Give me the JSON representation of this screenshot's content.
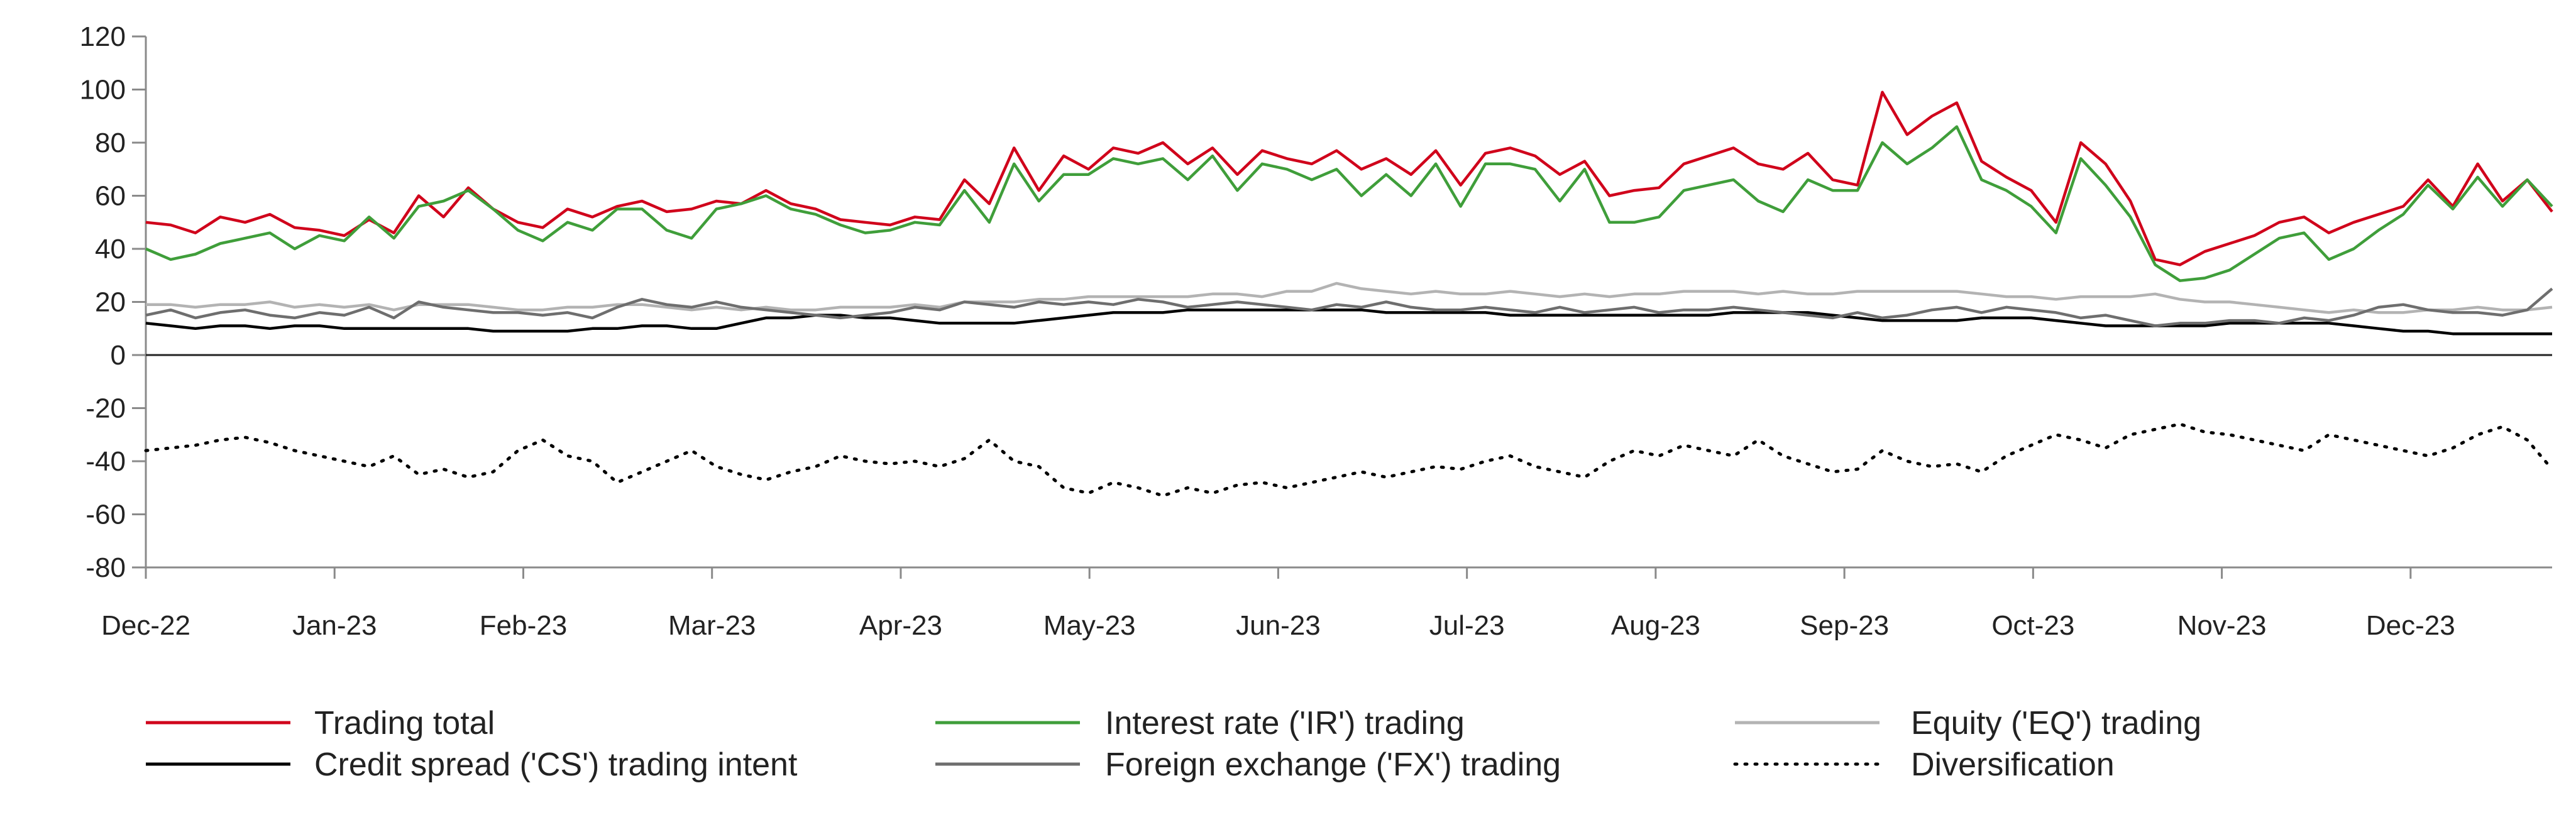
{
  "chart_data": {
    "type": "line",
    "title": "",
    "xlabel": "",
    "ylabel": "",
    "ylim": [
      -80,
      120
    ],
    "yticks": [
      120,
      100,
      80,
      60,
      40,
      20,
      0,
      -20,
      -40,
      -60,
      -80
    ],
    "x_tick_labels": [
      "Dec-22",
      "Jan-23",
      "Feb-23",
      "Mar-23",
      "Apr-23",
      "May-23",
      "Jun-23",
      "Jul-23",
      "Aug-23",
      "Sep-23",
      "Oct-23",
      "Nov-23",
      "Dec-23"
    ],
    "x_month_index": [
      0,
      1,
      2,
      3,
      4,
      5,
      6,
      7,
      8,
      9,
      10,
      11,
      12
    ],
    "grid": false,
    "legend_position": "bottom",
    "series": [
      {
        "name": "Trading total",
        "color": "#d0021b",
        "style": "solid",
        "values": [
          50,
          49,
          46,
          52,
          50,
          53,
          48,
          47,
          45,
          51,
          46,
          60,
          52,
          63,
          55,
          50,
          48,
          55,
          52,
          56,
          58,
          54,
          55,
          58,
          57,
          62,
          57,
          55,
          51,
          50,
          49,
          52,
          51,
          66,
          57,
          78,
          62,
          75,
          70,
          78,
          76,
          80,
          72,
          78,
          68,
          77,
          74,
          72,
          77,
          70,
          74,
          68,
          77,
          64,
          76,
          78,
          75,
          68,
          73,
          60,
          62,
          63,
          72,
          75,
          78,
          72,
          70,
          76,
          66,
          64,
          99,
          83,
          90,
          95,
          73,
          67,
          62,
          50,
          80,
          72,
          58,
          36,
          34,
          39,
          42,
          45,
          50,
          52,
          46,
          50,
          53,
          56,
          66,
          56,
          72,
          58,
          66,
          54
        ]
      },
      {
        "name": "Interest rate ('IR') trading",
        "color": "#3f9e3a",
        "style": "solid",
        "values": [
          40,
          36,
          38,
          42,
          44,
          46,
          40,
          45,
          43,
          52,
          44,
          56,
          58,
          62,
          55,
          47,
          43,
          50,
          47,
          55,
          55,
          47,
          44,
          55,
          57,
          60,
          55,
          53,
          49,
          46,
          47,
          50,
          49,
          62,
          50,
          72,
          58,
          68,
          68,
          74,
          72,
          74,
          66,
          75,
          62,
          72,
          70,
          66,
          70,
          60,
          68,
          60,
          72,
          56,
          72,
          72,
          70,
          58,
          70,
          50,
          50,
          52,
          62,
          64,
          66,
          58,
          54,
          66,
          62,
          62,
          80,
          72,
          78,
          86,
          66,
          62,
          56,
          46,
          74,
          64,
          52,
          34,
          28,
          29,
          32,
          38,
          44,
          46,
          36,
          40,
          47,
          53,
          64,
          55,
          67,
          56,
          66,
          56
        ]
      },
      {
        "name": "Equity ('EQ') trading",
        "color": "#b3b3b3",
        "style": "solid",
        "values": [
          19,
          19,
          18,
          19,
          19,
          20,
          18,
          19,
          18,
          19,
          17,
          19,
          19,
          19,
          18,
          17,
          17,
          18,
          18,
          19,
          19,
          18,
          17,
          18,
          17,
          18,
          17,
          17,
          18,
          18,
          18,
          19,
          18,
          20,
          20,
          20,
          21,
          21,
          22,
          22,
          22,
          22,
          22,
          23,
          23,
          22,
          24,
          24,
          27,
          25,
          24,
          23,
          24,
          23,
          23,
          24,
          23,
          22,
          23,
          22,
          23,
          23,
          24,
          24,
          24,
          23,
          24,
          23,
          23,
          24,
          24,
          24,
          24,
          24,
          23,
          22,
          22,
          21,
          22,
          22,
          22,
          23,
          21,
          20,
          20,
          19,
          18,
          17,
          16,
          17,
          16,
          16,
          17,
          17,
          18,
          17,
          17,
          18
        ]
      },
      {
        "name": "Credit spread ('CS') trading intent",
        "color": "#000000",
        "style": "solid",
        "values": [
          12,
          11,
          10,
          11,
          11,
          10,
          11,
          11,
          10,
          10,
          10,
          10,
          10,
          10,
          9,
          9,
          9,
          9,
          10,
          10,
          11,
          11,
          10,
          10,
          12,
          14,
          14,
          15,
          15,
          14,
          14,
          13,
          12,
          12,
          12,
          12,
          13,
          14,
          15,
          16,
          16,
          16,
          17,
          17,
          17,
          17,
          17,
          17,
          17,
          17,
          16,
          16,
          16,
          16,
          16,
          15,
          15,
          15,
          15,
          15,
          15,
          15,
          15,
          15,
          16,
          16,
          16,
          16,
          15,
          14,
          13,
          13,
          13,
          13,
          14,
          14,
          14,
          13,
          12,
          11,
          11,
          11,
          11,
          11,
          12,
          12,
          12,
          12,
          12,
          11,
          10,
          9,
          9,
          8,
          8,
          8,
          8,
          8
        ]
      },
      {
        "name": "Foreign exchange ('FX') trading",
        "color": "#6e6e6e",
        "style": "solid",
        "values": [
          15,
          17,
          14,
          16,
          17,
          15,
          14,
          16,
          15,
          18,
          14,
          20,
          18,
          17,
          16,
          16,
          15,
          16,
          14,
          18,
          21,
          19,
          18,
          20,
          18,
          17,
          16,
          15,
          14,
          15,
          16,
          18,
          17,
          20,
          19,
          18,
          20,
          19,
          20,
          19,
          21,
          20,
          18,
          19,
          20,
          19,
          18,
          17,
          19,
          18,
          20,
          18,
          17,
          17,
          18,
          17,
          16,
          18,
          16,
          17,
          18,
          16,
          17,
          17,
          18,
          17,
          16,
          15,
          14,
          16,
          14,
          15,
          17,
          18,
          16,
          18,
          17,
          16,
          14,
          15,
          13,
          11,
          12,
          12,
          13,
          13,
          12,
          14,
          13,
          15,
          18,
          19,
          17,
          16,
          16,
          15,
          17,
          25
        ]
      },
      {
        "name": "Diversification",
        "color": "#000000",
        "style": "dotted",
        "values": [
          -36,
          -35,
          -34,
          -32,
          -31,
          -33,
          -36,
          -38,
          -40,
          -42,
          -38,
          -45,
          -43,
          -46,
          -44,
          -36,
          -32,
          -38,
          -40,
          -48,
          -44,
          -40,
          -36,
          -42,
          -45,
          -47,
          -44,
          -42,
          -38,
          -40,
          -41,
          -40,
          -42,
          -39,
          -32,
          -40,
          -42,
          -50,
          -52,
          -48,
          -50,
          -53,
          -50,
          -52,
          -49,
          -48,
          -50,
          -48,
          -46,
          -44,
          -46,
          -44,
          -42,
          -43,
          -40,
          -38,
          -42,
          -44,
          -46,
          -40,
          -36,
          -38,
          -34,
          -36,
          -38,
          -32,
          -38,
          -41,
          -44,
          -43,
          -36,
          -40,
          -42,
          -41,
          -44,
          -38,
          -34,
          -30,
          -32,
          -35,
          -30,
          -28,
          -26,
          -29,
          -30,
          -32,
          -34,
          -36,
          -30,
          -32,
          -34,
          -36,
          -38,
          -35,
          -30,
          -27,
          -32,
          -43
        ]
      }
    ]
  }
}
